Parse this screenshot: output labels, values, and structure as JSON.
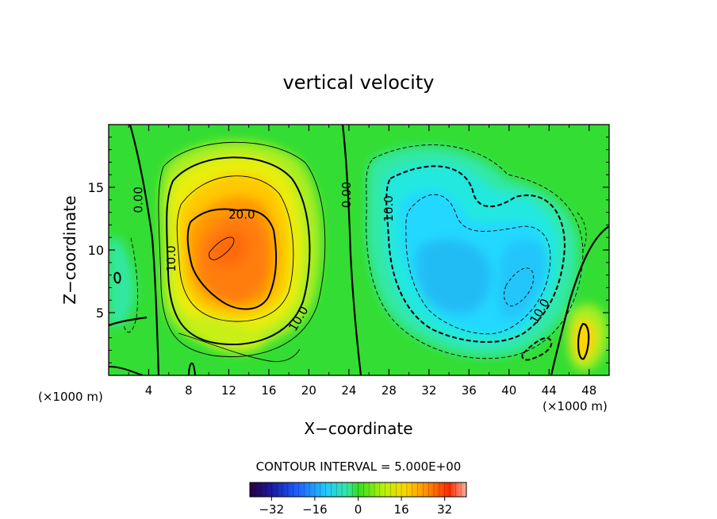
{
  "chart_data": {
    "type": "heatmap",
    "title": "vertical velocity",
    "xlabel": "X−coordinate",
    "ylabel": "Z−coordinate",
    "x_unit_left": "(×1000 m)",
    "x_unit_right": "(×1000 m)",
    "xlim": [
      0,
      50
    ],
    "ylim": [
      0,
      20
    ],
    "x_ticks": [
      4,
      8,
      12,
      16,
      20,
      24,
      28,
      32,
      36,
      40,
      44,
      48
    ],
    "y_ticks": [
      5,
      10,
      15
    ],
    "contour_interval_label": "CONTOUR INTERVAL = 5.000E+00",
    "contour_labels": [
      {
        "text": "0.00",
        "x": 3.0,
        "z": 14.0,
        "angle": -90
      },
      {
        "text": "10.0",
        "x": 6.3,
        "z": 9.3,
        "angle": -90
      },
      {
        "text": "20.0",
        "x": 13.3,
        "z": 12.8,
        "angle": 0
      },
      {
        "text": "10.0",
        "x": 19.0,
        "z": 4.5,
        "angle": -60
      },
      {
        "text": "0.00",
        "x": 23.8,
        "z": 14.4,
        "angle": -90
      },
      {
        "text": "10.0",
        "x": 28.0,
        "z": 13.3,
        "angle": -90
      },
      {
        "text": "10.0",
        "x": 43.1,
        "z": 5.1,
        "angle": -60
      }
    ],
    "updraft_core": {
      "x": 13.0,
      "z": 10.0,
      "max": 27
    },
    "downdraft_core": {
      "x": 36.0,
      "z": 8.5,
      "min": -20
    },
    "colorbar": {
      "range": [
        -40,
        40
      ],
      "ticks": [
        -32,
        -16,
        0,
        16,
        32
      ],
      "tick_labels": [
        "−32",
        "−16",
        "0",
        "16",
        "32"
      ]
    }
  }
}
